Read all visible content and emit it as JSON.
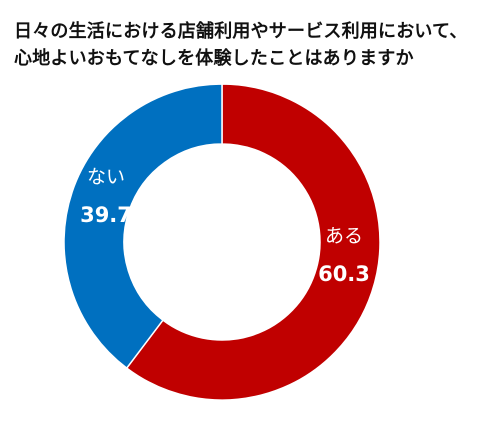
{
  "chart_data": {
    "type": "pie",
    "variant": "donut",
    "title_lines": [
      "日々の生活における店舗利用やサービス利用において、",
      "心地よいおもてなしを体験したことはありますか"
    ],
    "slices": [
      {
        "label": "ある",
        "value": 60.3,
        "color": "#C00000"
      },
      {
        "label": "ない",
        "value": 39.7,
        "color": "#0070C0"
      }
    ],
    "start": "12 o'clock",
    "direction": "clockwise",
    "legend": "none",
    "data_labels": "inside slices"
  }
}
